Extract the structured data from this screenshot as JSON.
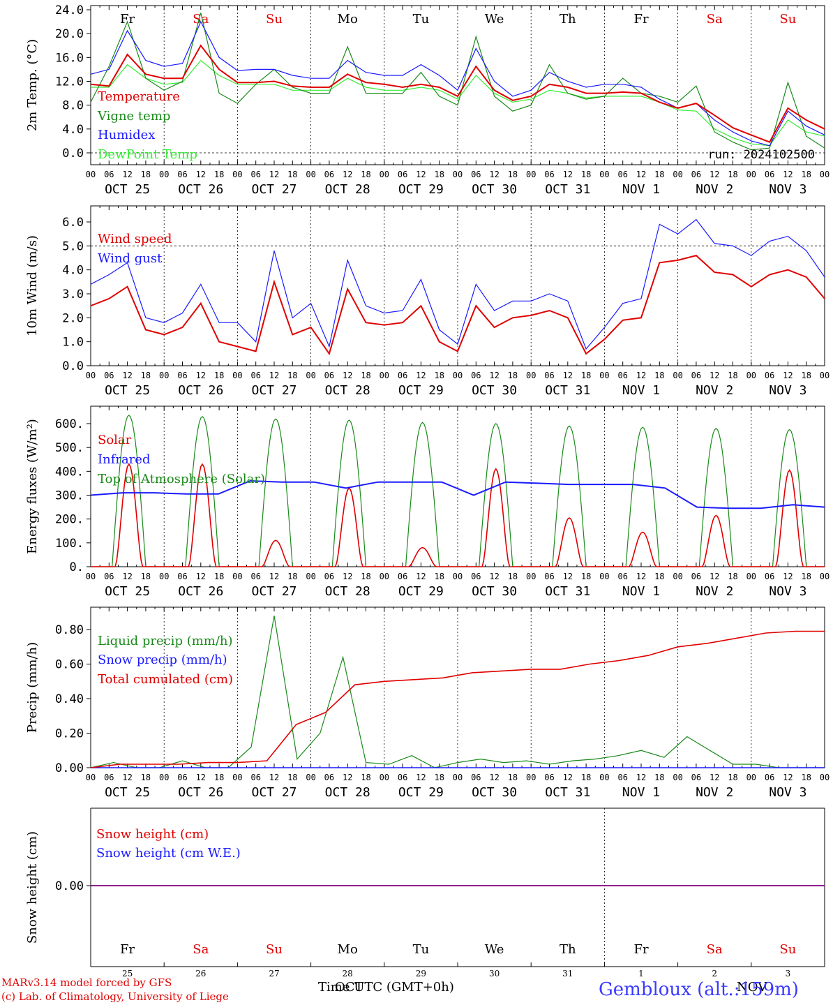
{
  "days": [
    "OCT 25",
    "OCT 26",
    "OCT 27",
    "OCT 28",
    "OCT 29",
    "OCT 30",
    "OCT 31",
    "NOV  1",
    "NOV  2",
    "NOV  3"
  ],
  "weekdays": [
    {
      "label": "Fr",
      "color": "#000000"
    },
    {
      "label": "Sa",
      "color": "#e00000"
    },
    {
      "label": "Su",
      "color": "#e00000"
    },
    {
      "label": "Mo",
      "color": "#000000"
    },
    {
      "label": "Tu",
      "color": "#000000"
    },
    {
      "label": "We",
      "color": "#000000"
    },
    {
      "label": "Th",
      "color": "#000000"
    },
    {
      "label": "Fr",
      "color": "#000000"
    },
    {
      "label": "Sa",
      "color": "#e00000"
    },
    {
      "label": "Su",
      "color": "#e00000"
    }
  ],
  "day_numbers": [
    "25",
    "26",
    "27",
    "28",
    "29",
    "30",
    "31",
    "1",
    "2",
    "3"
  ],
  "hour_ticks": [
    "00",
    "06",
    "12",
    "18"
  ],
  "hour_end": "00",
  "colors": {
    "red": "#e00000",
    "green": "#1a8a1a",
    "blue": "#1a1aff",
    "lightgreen": "#33ee33",
    "purple": "#800080"
  },
  "chart_data": [
    {
      "type": "line",
      "ylabel": "2m Temp. (°C)",
      "ylim": [
        -1.5,
        24
      ],
      "yticks": [
        "0.0",
        "4.0",
        "8.0",
        "12.0",
        "16.0",
        "20.0",
        "24.0"
      ],
      "annotation": "run: 2024102500",
      "x_hours": [
        0,
        6,
        12,
        18,
        24,
        30,
        36,
        42,
        48,
        54,
        60,
        66,
        72,
        78,
        84,
        90,
        96,
        102,
        108,
        114,
        120,
        126,
        132,
        138,
        144,
        150,
        156,
        162,
        168,
        174,
        180,
        186,
        192,
        198,
        204,
        210,
        216,
        222,
        228,
        234,
        240
      ],
      "series": [
        {
          "name": "Temperature",
          "color": "red",
          "values": [
            11.5,
            11.2,
            16.5,
            13.2,
            12.5,
            12.5,
            18.0,
            14.0,
            11.8,
            11.8,
            12.0,
            11.2,
            11.0,
            11.0,
            13.2,
            11.8,
            11.5,
            11.0,
            11.5,
            11.0,
            9.5,
            14.5,
            10.5,
            8.8,
            9.5,
            11.5,
            11.0,
            10.0,
            10.0,
            10.2,
            10.0,
            8.5,
            7.5,
            8.3,
            6.3,
            4.2,
            3.0,
            1.8,
            7.5,
            5.5,
            4.0
          ]
        },
        {
          "name": "Vigne temp",
          "color": "green",
          "values": [
            8.5,
            14.5,
            22.0,
            12.5,
            10.5,
            12.0,
            23.5,
            10.0,
            8.3,
            11.5,
            14.0,
            11.0,
            10.0,
            10.0,
            17.8,
            10.0,
            10.0,
            10.0,
            13.5,
            9.5,
            8.0,
            19.5,
            9.5,
            7.0,
            8.0,
            14.8,
            10.0,
            9.0,
            9.5,
            12.5,
            10.0,
            9.5,
            8.5,
            11.2,
            3.5,
            1.8,
            0.5,
            0.8,
            11.8,
            2.8,
            0.8
          ]
        },
        {
          "name": "Humidex",
          "color": "blue",
          "values": [
            13.2,
            14.0,
            20.5,
            15.5,
            14.5,
            15.0,
            22.0,
            16.0,
            13.8,
            14.0,
            14.0,
            13.0,
            12.5,
            12.5,
            15.5,
            13.5,
            13.0,
            13.0,
            14.8,
            13.0,
            10.5,
            17.5,
            12.0,
            9.5,
            10.5,
            13.5,
            12.0,
            11.0,
            11.5,
            11.5,
            11.0,
            9.0,
            7.5,
            8.3,
            5.5,
            3.5,
            2.0,
            1.2,
            7.0,
            4.5,
            3.0
          ]
        },
        {
          "name": "DewPoint Temp",
          "color": "lightgreen",
          "values": [
            11.0,
            11.0,
            14.8,
            12.5,
            11.5,
            11.8,
            15.5,
            13.0,
            11.5,
            11.5,
            11.5,
            10.5,
            10.5,
            10.5,
            12.5,
            11.0,
            10.5,
            10.5,
            11.0,
            10.5,
            9.0,
            13.0,
            10.0,
            8.5,
            9.0,
            10.5,
            10.0,
            9.2,
            9.5,
            9.5,
            9.5,
            8.5,
            7.2,
            7.0,
            4.0,
            2.5,
            1.5,
            1.2,
            5.5,
            3.5,
            2.8
          ]
        }
      ]
    },
    {
      "type": "line",
      "ylabel": "10m Wind (m/s)",
      "ylim": [
        0,
        6.5
      ],
      "yticks": [
        "0.0",
        "1.0",
        "2.0",
        "3.0",
        "4.0",
        "5.0",
        "6.0"
      ],
      "x_hours": [
        0,
        6,
        12,
        18,
        24,
        30,
        36,
        42,
        48,
        54,
        60,
        66,
        72,
        78,
        84,
        90,
        96,
        102,
        108,
        114,
        120,
        126,
        132,
        138,
        144,
        150,
        156,
        162,
        168,
        174,
        180,
        186,
        192,
        198,
        204,
        210,
        216,
        222,
        228,
        234,
        240
      ],
      "series": [
        {
          "name": "Wind speed",
          "color": "red",
          "values": [
            2.5,
            2.8,
            3.3,
            1.5,
            1.3,
            1.6,
            2.6,
            1.0,
            0.8,
            0.6,
            3.5,
            1.3,
            1.6,
            0.5,
            3.2,
            1.8,
            1.7,
            1.8,
            2.5,
            1.0,
            0.6,
            2.5,
            1.6,
            2.0,
            2.1,
            2.3,
            2.0,
            0.5,
            1.1,
            1.9,
            2.0,
            4.3,
            4.4,
            4.6,
            3.9,
            3.8,
            3.3,
            3.8,
            4.0,
            3.7,
            2.8
          ]
        },
        {
          "name": "Wind gust",
          "color": "blue",
          "values": [
            3.4,
            3.8,
            4.3,
            2.0,
            1.8,
            2.2,
            3.4,
            1.8,
            1.8,
            1.0,
            4.8,
            2.0,
            2.6,
            0.8,
            4.4,
            2.5,
            2.2,
            2.3,
            3.6,
            1.5,
            0.9,
            3.4,
            2.3,
            2.7,
            2.7,
            3.0,
            2.7,
            0.7,
            1.6,
            2.6,
            2.8,
            5.9,
            5.5,
            6.1,
            5.1,
            5.0,
            4.6,
            5.2,
            5.4,
            4.8,
            3.7
          ]
        }
      ]
    },
    {
      "type": "line",
      "ylabel": "Energy fluxes (W/m²)",
      "ylim": [
        0,
        660
      ],
      "yticks": [
        "0.",
        "100.",
        "200.",
        "300.",
        "400.",
        "500.",
        "600."
      ],
      "series": [
        {
          "name": "Solar",
          "color": "red",
          "peaks": [
            430,
            430,
            110,
            330,
            80,
            410,
            205,
            145,
            215,
            405
          ]
        },
        {
          "name": "Infrared",
          "color": "blue",
          "values": [
            300,
            310,
            310,
            305,
            305,
            360,
            355,
            355,
            330,
            355,
            355,
            355,
            300,
            355,
            350,
            345,
            345,
            345,
            330,
            250,
            245,
            245,
            260,
            250
          ]
        },
        {
          "name": "Top of Atmosphere (Solar)",
          "color": "green",
          "peaks": [
            635,
            630,
            620,
            615,
            605,
            600,
            590,
            585,
            580,
            575
          ]
        }
      ]
    },
    {
      "type": "line",
      "ylabel": "Precip (mm/h)",
      "ylim": [
        0,
        0.9
      ],
      "yticks": [
        "0.00",
        "0.20",
        "0.40",
        "0.60",
        "0.80"
      ],
      "series": [
        {
          "name": "Liquid precip (mm/h)",
          "color": "green",
          "values": [
            0.0,
            0.03,
            0.0,
            0.0,
            0.04,
            0.0,
            0.0,
            0.12,
            0.88,
            0.05,
            0.2,
            0.64,
            0.03,
            0.02,
            0.07,
            0.0,
            0.03,
            0.05,
            0.03,
            0.04,
            0.02,
            0.04,
            0.05,
            0.07,
            0.1,
            0.06,
            0.18,
            0.1,
            0.02,
            0.02,
            0.0,
            0.0,
            0.0
          ]
        },
        {
          "name": "Snow precip (mm/h)",
          "color": "blue",
          "values": [
            0,
            0
          ]
        },
        {
          "name": "Total cumulated (cm)",
          "color": "red",
          "values": [
            0.0,
            0.02,
            0.02,
            0.02,
            0.03,
            0.03,
            0.04,
            0.25,
            0.32,
            0.48,
            0.5,
            0.51,
            0.52,
            0.55,
            0.56,
            0.57,
            0.57,
            0.6,
            0.62,
            0.65,
            0.7,
            0.72,
            0.75,
            0.78,
            0.79,
            0.79
          ]
        }
      ]
    },
    {
      "type": "line",
      "ylabel": "Snow height (cm)",
      "yticks": [
        "0.00"
      ],
      "series": [
        {
          "name": "Snow height (cm)",
          "color": "red",
          "values": [
            0,
            0
          ]
        },
        {
          "name": "Snow height (cm W.E.)",
          "color": "blue",
          "values": [
            0,
            0
          ]
        }
      ]
    }
  ],
  "footer": {
    "model": "MARv3.14 model forced by GFS",
    "lab": "(c) Lab. of Climatology, University of Liege",
    "time_label": "Time UTC (GMT+0h)",
    "month_oct": "OCT",
    "month_nov": "NOV",
    "station": "Gembloux (alt.:159m)"
  }
}
